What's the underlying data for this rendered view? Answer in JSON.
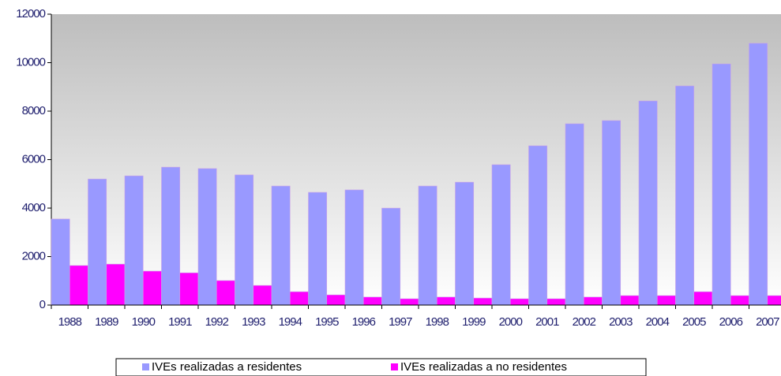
{
  "chart_data": {
    "type": "bar",
    "categories": [
      "1988",
      "1989",
      "1990",
      "1991",
      "1992",
      "1993",
      "1994",
      "1995",
      "1996",
      "1997",
      "1998",
      "1999",
      "2000",
      "2001",
      "2002",
      "2003",
      "2004",
      "2005",
      "2006",
      "2007"
    ],
    "series": [
      {
        "name": "IVEs realizadas a residentes",
        "color": "#9999ff",
        "values": [
          3550,
          5200,
          5330,
          5690,
          5630,
          5370,
          4910,
          4650,
          4750,
          4000,
          4910,
          5070,
          5790,
          6570,
          7480,
          7610,
          8420,
          9040,
          9950,
          10800
        ]
      },
      {
        "name": "IVEs realizadas a no residentes",
        "color": "#ff00ff",
        "values": [
          1630,
          1690,
          1400,
          1330,
          1010,
          810,
          550,
          420,
          330,
          260,
          330,
          290,
          260,
          260,
          330,
          390,
          390,
          550,
          390,
          390
        ]
      }
    ],
    "ylim": [
      0,
      12000
    ],
    "yticks": [
      0,
      2000,
      4000,
      6000,
      8000,
      10000,
      12000
    ]
  }
}
